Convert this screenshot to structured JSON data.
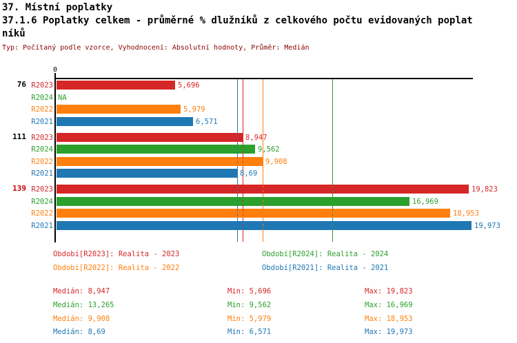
{
  "header": {
    "title_line1": "37. Místní poplatky",
    "title_line2": "37.1.6 Poplatky celkem - průměrné % dlužníků z celkového počtu evidovaných poplat",
    "title_line3": "níků",
    "meta": "Typ: Počítaný podle vzorce, Vyhodnocení: Absolutní hodnoty, Průměr: Medián"
  },
  "colors": {
    "red": "#d62728",
    "green": "#2ca02c",
    "orange": "#ff7f0e",
    "blue": "#1f77b4",
    "meta_text": "#8b0000",
    "highlight_label": "#cc0000",
    "axis": "#000000"
  },
  "chart_data": {
    "type": "bar",
    "orientation": "horizontal",
    "value_axis_origin_label": "0",
    "decimal_format": "comma",
    "series_order": [
      "R2023",
      "R2024",
      "R2022",
      "R2021"
    ],
    "series_colors": {
      "R2023": "red",
      "R2024": "green",
      "R2022": "orange",
      "R2021": "blue"
    },
    "groups": [
      {
        "label": "76",
        "highlighted": false,
        "bars": [
          {
            "series": "R2023",
            "value": 5.696,
            "value_label": "5,696"
          },
          {
            "series": "R2024",
            "value": null,
            "value_label": "NA"
          },
          {
            "series": "R2022",
            "value": 5.979,
            "value_label": "5,979"
          },
          {
            "series": "R2021",
            "value": 6.571,
            "value_label": "6,571"
          }
        ]
      },
      {
        "label": "111",
        "highlighted": false,
        "bars": [
          {
            "series": "R2023",
            "value": 8.947,
            "value_label": "8,947"
          },
          {
            "series": "R2024",
            "value": 9.562,
            "value_label": "9,562"
          },
          {
            "series": "R2022",
            "value": 9.908,
            "value_label": "9,908"
          },
          {
            "series": "R2021",
            "value": 8.69,
            "value_label": "8,69"
          }
        ]
      },
      {
        "label": "139",
        "highlighted": true,
        "bars": [
          {
            "series": "R2023",
            "value": 19.823,
            "value_label": "19,823"
          },
          {
            "series": "R2024",
            "value": 16.969,
            "value_label": "16,969"
          },
          {
            "series": "R2022",
            "value": 18.953,
            "value_label": "18,953"
          },
          {
            "series": "R2021",
            "value": 19.973,
            "value_label": "19,973"
          }
        ]
      }
    ],
    "median_lines": [
      {
        "series": "R2023",
        "value": 8.947
      },
      {
        "series": "R2024",
        "value": 13.265
      },
      {
        "series": "R2022",
        "value": 9.908
      },
      {
        "series": "R2021",
        "value": 8.69
      }
    ]
  },
  "legend": [
    {
      "series": "R2023",
      "text": "Období[R2023]: Realita - 2023"
    },
    {
      "series": "R2024",
      "text": "Období[R2024]: Realita - 2024"
    },
    {
      "series": "R2022",
      "text": "Období[R2022]: Realita - 2022"
    },
    {
      "series": "R2021",
      "text": "Období[R2021]: Realita - 2021"
    }
  ],
  "stats": [
    {
      "series": "R2023",
      "median": "Medián: 8,947",
      "min": "Min: 5,696",
      "max": "Max: 19,823"
    },
    {
      "series": "R2024",
      "median": "Medián: 13,265",
      "min": "Min: 9,562",
      "max": "Max: 16,969"
    },
    {
      "series": "R2022",
      "median": "Medián: 9,908",
      "min": "Min: 5,979",
      "max": "Max: 18,953"
    },
    {
      "series": "R2021",
      "median": "Medián: 8,69",
      "min": "Min: 6,571",
      "max": "Max: 19,973"
    }
  ]
}
